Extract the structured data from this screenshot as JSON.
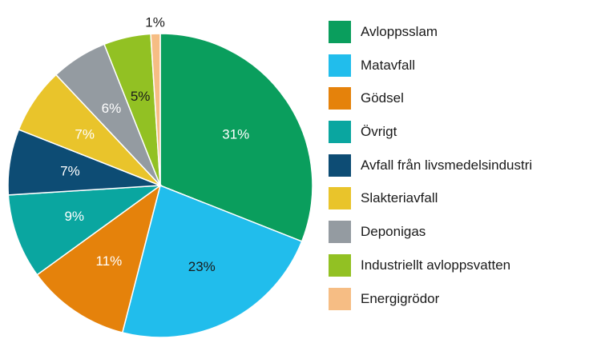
{
  "chart_data": {
    "type": "pie",
    "start_angle_deg": 0,
    "direction": "clockwise",
    "slices": [
      {
        "label": "Avloppsslam",
        "value": 31,
        "value_label": "31%",
        "color": "#0a9e5d",
        "label_color": "#ffffff"
      },
      {
        "label": "Matavfall",
        "value": 23,
        "value_label": "23%",
        "color": "#21bdec",
        "label_color": "#1a1a1a"
      },
      {
        "label": "Gödsel",
        "value": 11,
        "value_label": "11%",
        "color": "#e5820b",
        "label_color": "#ffffff"
      },
      {
        "label": "Övrigt",
        "value": 9,
        "value_label": "9%",
        "color": "#0aa6a0",
        "label_color": "#ffffff"
      },
      {
        "label": "Avfall från livsmedelsindustri",
        "value": 7,
        "value_label": "7%",
        "color": "#0d4c74",
        "label_color": "#ffffff"
      },
      {
        "label": "Slakteriavfall",
        "value": 7,
        "value_label": "7%",
        "color": "#e9c42b",
        "label_color": "#ffffff"
      },
      {
        "label": "Deponigas",
        "value": 6,
        "value_label": "6%",
        "color": "#949ba1",
        "label_color": "#ffffff"
      },
      {
        "label": "Industriellt avloppsvatten",
        "value": 5,
        "value_label": "5%",
        "color": "#92c123",
        "label_color": "#1a1a1a"
      },
      {
        "label": "Energigrödor",
        "value": 1,
        "value_label": "1%",
        "color": "#f6bd84",
        "label_color": "#1a1a1a"
      }
    ],
    "legend_position": "right"
  }
}
